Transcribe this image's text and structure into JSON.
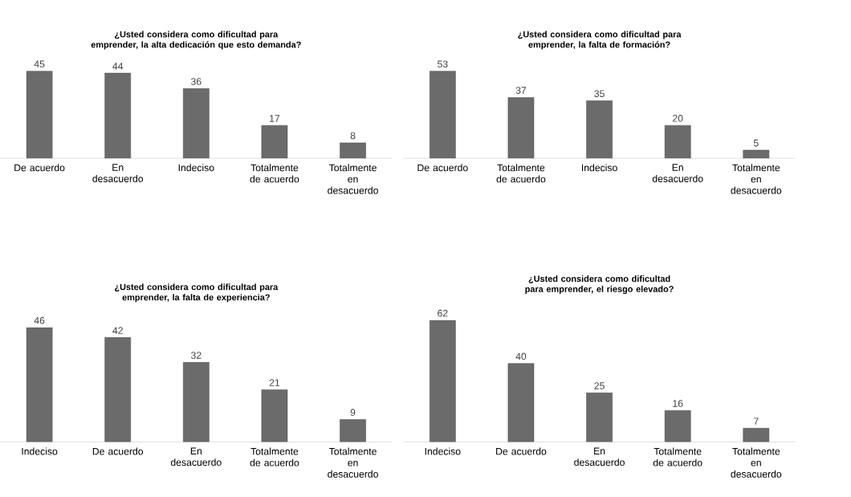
{
  "chart_data": [
    {
      "type": "bar",
      "title": "¿Usted considera como dificultad para emprender, la alta dedicación que esto demanda?",
      "categories": [
        "De acuerdo",
        "En desacuerdo",
        "Indeciso",
        "Totalmente de acuerdo",
        "Totalmente en desacuerdo"
      ],
      "values": [
        45,
        44,
        36,
        17,
        8
      ],
      "color": "#6b6b6b",
      "data_labels": true
    },
    {
      "type": "bar",
      "title": "¿Usted considera como dificultad para emprender, la falta de formación?",
      "categories": [
        "De acuerdo",
        "Totalmente de acuerdo",
        "Indeciso",
        "En desacuerdo",
        "Totalmente en desacuerdo"
      ],
      "values": [
        53,
        37,
        35,
        20,
        5
      ],
      "color": "#6b6b6b",
      "data_labels": true
    },
    {
      "type": "bar",
      "title": "¿Usted considera como dificultad para emprender, la falta de experiencia?",
      "categories": [
        "Indeciso",
        "De acuerdo",
        "En desacuerdo",
        "Totalmente de acuerdo",
        "Totalmente en desacuerdo"
      ],
      "values": [
        46,
        42,
        32,
        21,
        9
      ],
      "color": "#6b6b6b",
      "data_labels": true
    },
    {
      "type": "bar",
      "title": "¿Usted considera como dificultad para emprender, el riesgo elevado?",
      "categories": [
        "Indeciso",
        "De acuerdo",
        "En desacuerdo",
        "Totalmente de acuerdo",
        "Totalmente en desacuerdo"
      ],
      "values": [
        62,
        40,
        25,
        16,
        7
      ],
      "color": "#6b6b6b",
      "data_labels": true
    }
  ]
}
